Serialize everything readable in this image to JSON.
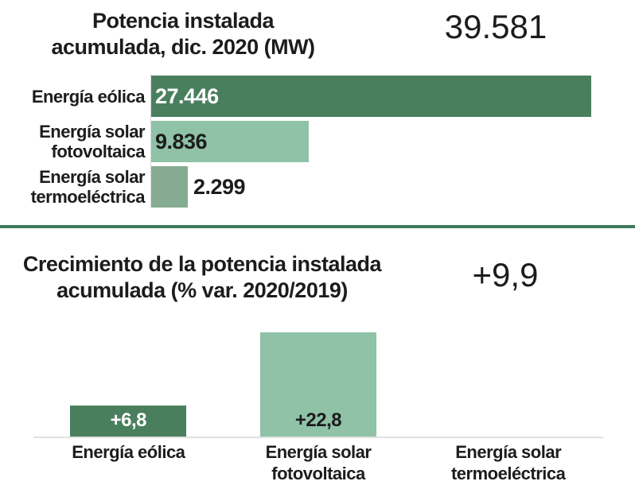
{
  "colors": {
    "dark_green": "#4a7f5e",
    "light_green": "#8fc2a7",
    "sage_green": "#85ac92",
    "divider_green": "#3e7a5a",
    "baseline_gray": "#e1e1e1",
    "text_dark": "#1c1c1c",
    "value_light": "#ffffff"
  },
  "chart_data": [
    {
      "type": "bar",
      "orientation": "horizontal",
      "title": "Potencia instalada acumulada, dic. 2020 (MW)",
      "title_lines": [
        "Potencia instalada",
        "acumulada, dic. 2020 (MW)"
      ],
      "total_label": "39.581",
      "total_value": 39581,
      "categories": [
        "Energía eólica",
        "Energía solar fotovoltaica",
        "Energía solar termoeléctrica"
      ],
      "category_lines": [
        [
          "Energía eólica"
        ],
        [
          "Energía solar",
          "fotovoltaica"
        ],
        [
          "Energía solar",
          "termoeléctrica"
        ]
      ],
      "values": [
        27446,
        9836,
        2299
      ],
      "value_labels": [
        "27.446",
        "9.836",
        "2.299"
      ],
      "bar_colors": [
        "#4a7f5e",
        "#8fc2a7",
        "#85ac92"
      ],
      "xlim": [
        0,
        27446
      ],
      "grid": false,
      "legend": false
    },
    {
      "type": "bar",
      "orientation": "vertical",
      "title": "Crecimiento de la potencia instalada acumulada (% var. 2020/2019)",
      "title_lines": [
        "Crecimiento de la potencia instalada",
        "acumulada (% var. 2020/2019)"
      ],
      "total_label": "+9,9",
      "total_value": 9.9,
      "categories": [
        "Energía eólica",
        "Energía solar fotovoltaica",
        "Energía solar termoeléctrica"
      ],
      "category_lines": [
        [
          "Energía eólica"
        ],
        [
          "Energía solar",
          "fotovoltaica"
        ],
        [
          "Energía solar",
          "termoeléctrica"
        ]
      ],
      "values": [
        6.8,
        22.8,
        0
      ],
      "value_labels": [
        "+6,8",
        "+22,8",
        ""
      ],
      "bar_colors": [
        "#4a7f5e",
        "#8fc2a7",
        null
      ],
      "ylim": [
        0,
        22.8
      ],
      "grid": false,
      "legend": false
    }
  ]
}
